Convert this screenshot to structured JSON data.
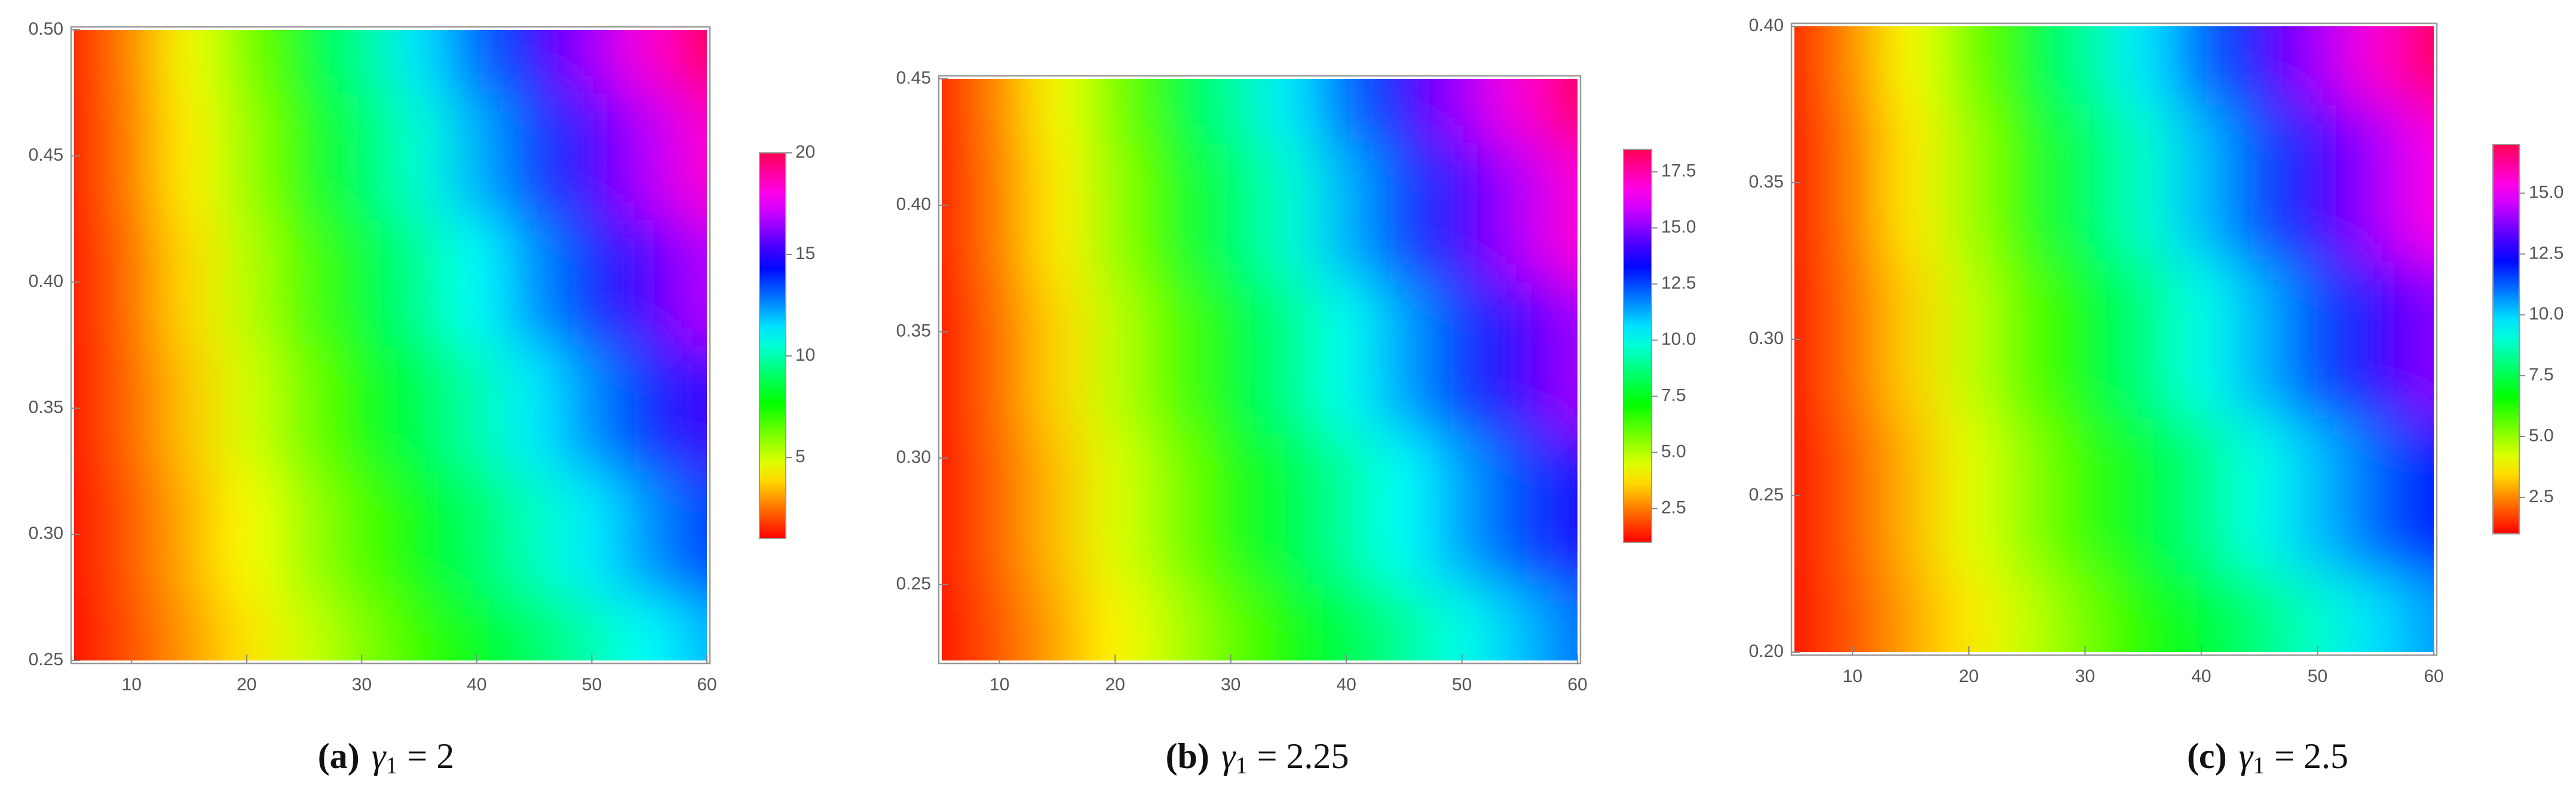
{
  "chart_data": [
    {
      "type": "heatmap",
      "caption_label": "(a)",
      "caption_var": "γ",
      "caption_sub": "1",
      "caption_rest": "= 2",
      "xlim": [
        5,
        60
      ],
      "xticks": [
        10,
        20,
        30,
        40,
        50,
        60
      ],
      "ylim": [
        0.25,
        0.5
      ],
      "yticks": [
        {
          "value": 0.25,
          "label": "0.25"
        },
        {
          "value": 0.3,
          "label": "0.30"
        },
        {
          "value": 0.35,
          "label": "0.35"
        },
        {
          "value": 0.4,
          "label": "0.40"
        },
        {
          "value": 0.45,
          "label": "0.45"
        },
        {
          "value": 0.5,
          "label": "0.50"
        }
      ],
      "zlim": [
        1,
        20
      ],
      "zticks": [
        5,
        10,
        15,
        20
      ],
      "x": [
        5,
        10,
        15,
        20,
        25,
        30,
        35,
        40,
        45,
        50,
        55,
        60
      ],
      "y": [
        0.25,
        0.3,
        0.35,
        0.4,
        0.45,
        0.5
      ],
      "z": [
        [
          1,
          2,
          3,
          4,
          5,
          6,
          7,
          8,
          9,
          10,
          11,
          12
        ],
        [
          1,
          2.1,
          3.3,
          4.4,
          5.6,
          6.7,
          7.9,
          9.0,
          10.2,
          11.3,
          12.5,
          13.6
        ],
        [
          1,
          2.3,
          3.6,
          4.9,
          6.2,
          7.5,
          8.7,
          10.0,
          11.3,
          12.6,
          13.9,
          15.2
        ],
        [
          1,
          2.4,
          3.9,
          5.3,
          6.7,
          8.2,
          9.6,
          11.0,
          12.5,
          13.9,
          15.4,
          16.8
        ],
        [
          1,
          2.6,
          4.2,
          5.7,
          7.3,
          8.9,
          10.5,
          12.1,
          13.6,
          15.2,
          16.8,
          18.4
        ],
        [
          1,
          2.7,
          4.5,
          6.2,
          7.9,
          9.6,
          11.4,
          13.1,
          14.8,
          16.5,
          18.3,
          20.0
        ]
      ]
    },
    {
      "type": "heatmap",
      "caption_label": "(b)",
      "caption_var": "γ",
      "caption_sub": "1",
      "caption_rest": "= 2.25",
      "xlim": [
        5,
        60
      ],
      "xticks": [
        10,
        20,
        30,
        40,
        50,
        60
      ],
      "ylim": [
        0.22,
        0.45
      ],
      "yticks": [
        {
          "value": 0.25,
          "label": "0.25"
        },
        {
          "value": 0.3,
          "label": "0.30"
        },
        {
          "value": 0.35,
          "label": "0.35"
        },
        {
          "value": 0.4,
          "label": "0.40"
        },
        {
          "value": 0.45,
          "label": "0.45"
        }
      ],
      "zlim": [
        1,
        18.5
      ],
      "zticks": [
        2.5,
        {
          "value": 5,
          "label": "5.0"
        },
        7.5,
        {
          "value": 10,
          "label": "10.0"
        },
        12.5,
        {
          "value": 15,
          "label": "15.0"
        },
        17.5
      ],
      "x": [
        5,
        10,
        15,
        20,
        25,
        30,
        35,
        40,
        45,
        50,
        55,
        60
      ],
      "y": [
        0.22,
        0.28,
        0.34,
        0.4,
        0.45
      ],
      "z": [
        [
          1,
          2,
          3,
          4,
          5,
          6,
          7,
          8,
          9,
          10,
          11,
          12
        ],
        [
          1,
          2.2,
          3.3,
          4.5,
          5.6,
          6.8,
          7.9,
          9.1,
          10.2,
          11.4,
          12.5,
          13.7
        ],
        [
          1,
          2.3,
          3.6,
          4.9,
          6.2,
          7.5,
          8.8,
          10.1,
          11.4,
          12.7,
          14.0,
          15.3
        ],
        [
          1,
          2.5,
          3.9,
          5.4,
          6.8,
          8.3,
          9.7,
          11.2,
          12.6,
          14.1,
          15.5,
          17.0
        ],
        [
          1,
          2.6,
          4.2,
          5.8,
          7.4,
          9.0,
          10.5,
          12.1,
          13.7,
          15.3,
          16.9,
          18.5
        ]
      ]
    },
    {
      "type": "heatmap",
      "caption_label": "(c)",
      "caption_var": "γ",
      "caption_sub": "1",
      "caption_rest": "= 2.5",
      "xlim": [
        5,
        60
      ],
      "xticks": [
        10,
        20,
        30,
        40,
        50,
        60
      ],
      "ylim": [
        0.2,
        0.4
      ],
      "yticks": [
        {
          "value": 0.2,
          "label": "0.20"
        },
        {
          "value": 0.25,
          "label": "0.25"
        },
        {
          "value": 0.3,
          "label": "0.30"
        },
        {
          "value": 0.35,
          "label": "0.35"
        },
        {
          "value": 0.4,
          "label": "0.40"
        }
      ],
      "zlim": [
        1,
        17
      ],
      "zticks": [
        2.5,
        {
          "value": 5,
          "label": "5.0"
        },
        7.5,
        {
          "value": 10,
          "label": "10.0"
        },
        12.5,
        {
          "value": 15,
          "label": "15.0"
        }
      ],
      "x": [
        5,
        10,
        15,
        20,
        25,
        30,
        35,
        40,
        45,
        50,
        55,
        60
      ],
      "y": [
        0.2,
        0.25,
        0.3,
        0.35,
        0.4
      ],
      "z": [
        [
          1,
          1.9,
          2.8,
          3.6,
          4.5,
          5.4,
          6.3,
          7.1,
          8.0,
          8.9,
          9.8,
          10.6
        ],
        [
          1,
          2.0,
          3.0,
          4.1,
          5.1,
          6.1,
          7.1,
          8.1,
          9.2,
          10.2,
          11.2,
          12.2
        ],
        [
          1,
          2.2,
          3.3,
          4.5,
          5.7,
          6.8,
          8.0,
          9.2,
          10.3,
          11.5,
          12.7,
          13.8
        ],
        [
          1,
          2.3,
          3.6,
          4.9,
          6.2,
          7.6,
          8.9,
          10.2,
          11.5,
          12.8,
          14.1,
          15.4
        ],
        [
          1,
          2.5,
          3.9,
          5.4,
          6.8,
          8.3,
          9.7,
          11.2,
          12.6,
          14.1,
          15.6,
          17.0
        ]
      ]
    }
  ]
}
